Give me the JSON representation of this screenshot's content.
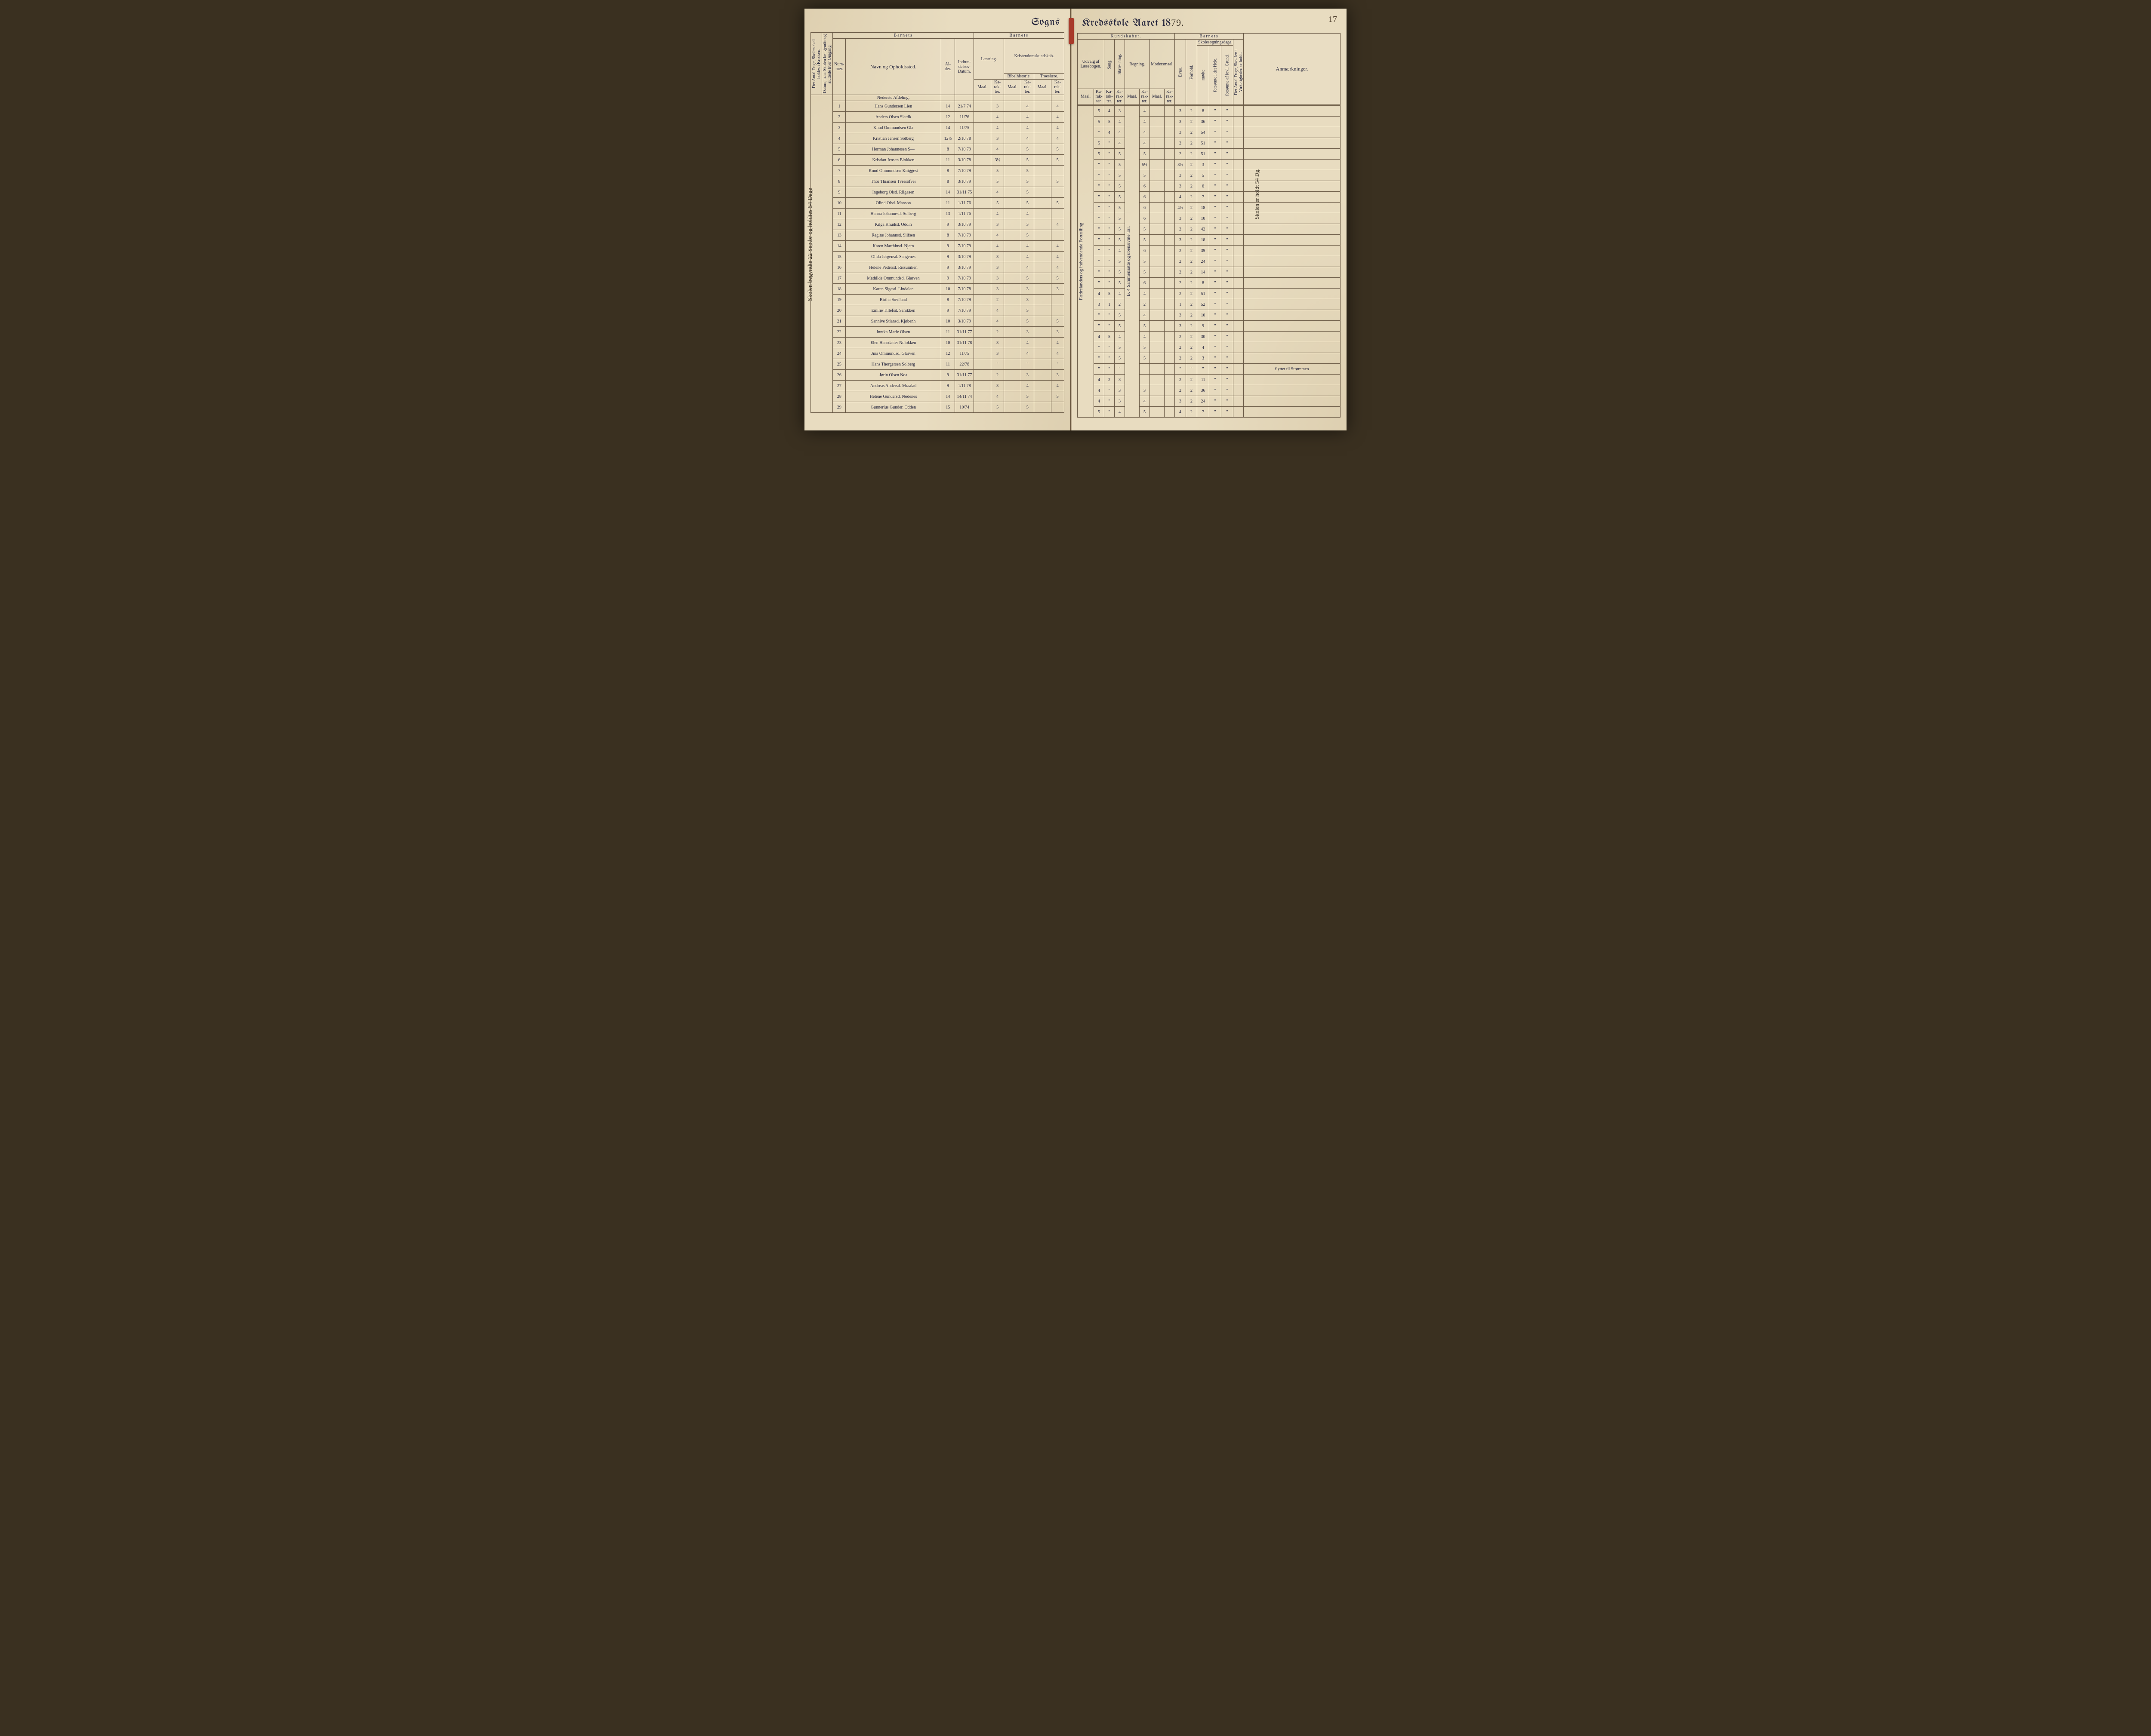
{
  "page_number": "17",
  "title_left": "Sogns",
  "title_right_prefix": "Kredsskole Aaret 18",
  "title_year_suffix": "79.",
  "margin_note_left": "Skolen begyndte 22 Septbr og holdtes 54 Dage",
  "margin_note_right": "Skolen er holdt 54 Dg.",
  "vertical_col_note_left": "Katekismen, 3 Forklaringen til 2den Artikkel",
  "vertical_col_note_right": "Fædrelandets og indvendende Fortælling",
  "vertical_col_note_regning": "B. 4 Sammensatte og ubenævnte Tal.",
  "headers": {
    "barnets": "Barnets",
    "kundskaber": "Kundskaber.",
    "nummer": "Num-\nmer.",
    "navn": "Navn og Opholdssted.",
    "alder": "Al-\nder.",
    "indtr": "Indtræ-\ndelses-\nDatum.",
    "laesning": "Læsning.",
    "kristendom": "Kristendomskundskab.",
    "bibel": "Bibelhistorie.",
    "troes": "Troeslære.",
    "udvalg": "Udvalg af\nLæsebogen.",
    "sang": "Sang.",
    "skriv": "Skriv-\nning.",
    "regning": "Regning.",
    "modersmaal": "Modersmaal.",
    "maal": "Maal.",
    "kar": "Ka-\nrak-\nter.",
    "evne": "Evne.",
    "forhold": "Forhold.",
    "skolesogn": "Skolesøgningsdage.",
    "modte": "mødte",
    "fors_hele": "forsømte i\ndet Hele.",
    "fors_lov": "forsømte af\nlovl. Grund.",
    "anm": "Anmærkninger.",
    "rot_left1": "Det Antal Dage, Skolen\nskal holdes i Kredsen.",
    "rot_left2": "Datum, naar Skolen be-\ngyndte og sluttede hver\nOmgang.",
    "rot_right": "Det Antal Dage, Sko-\nlen i Virkeligheden\ner holdt."
  },
  "subheading": "Nederste Afdeling.",
  "rows": [
    {
      "n": "1",
      "name": "Hans Gundersen Lien",
      "age": "14",
      "date": "21/7 74",
      "l": "3",
      "b": "4",
      "t": "4",
      "u": "5",
      "sa": "4",
      "sk": "3",
      "r": "4",
      "e": "3",
      "f": "2",
      "m": "8",
      "fh": "\"",
      "fl": "\"",
      "rem": ""
    },
    {
      "n": "2",
      "name": "Anders Olsen Slattik",
      "age": "12",
      "date": "11/76",
      "l": "4",
      "b": "4",
      "t": "4",
      "u": "5",
      "sa": "5",
      "sk": "4",
      "r": "4",
      "e": "3",
      "f": "2",
      "m": "36",
      "fh": "\"",
      "fl": "\"",
      "rem": ""
    },
    {
      "n": "3",
      "name": "Knud Ommundsen Gla",
      "age": "14",
      "date": "11/75",
      "l": "4",
      "b": "4",
      "t": "4",
      "u": "\"",
      "sa": "4",
      "sk": "4",
      "r": "4",
      "e": "3",
      "f": "2",
      "m": "54",
      "fh": "\"",
      "fl": "\"",
      "rem": ""
    },
    {
      "n": "4",
      "name": "Kristian Jensen Solberg",
      "age": "12½",
      "date": "2/10 78",
      "l": "3",
      "b": "4",
      "t": "4",
      "u": "5",
      "sa": "\"",
      "sk": "4",
      "r": "4",
      "e": "2",
      "f": "2",
      "m": "51",
      "fh": "\"",
      "fl": "\"",
      "rem": ""
    },
    {
      "n": "5",
      "name": "Herman Johannesen S—",
      "age": "8",
      "date": "7/10 79",
      "l": "4",
      "b": "5",
      "t": "5",
      "u": "5",
      "sa": "\"",
      "sk": "5",
      "r": "5",
      "e": "2",
      "f": "2",
      "m": "51",
      "fh": "\"",
      "fl": "\"",
      "rem": ""
    },
    {
      "n": "6",
      "name": "Kristian Jensen Blokken",
      "age": "11",
      "date": "3/10 78",
      "l": "3½",
      "b": "5",
      "t": "5",
      "u": "\"",
      "sa": "\"",
      "sk": "5",
      "r": "5½",
      "e": "3½",
      "f": "2",
      "m": "3",
      "fh": "\"",
      "fl": "\"",
      "rem": ""
    },
    {
      "n": "7",
      "name": "Knud Ommundsen Kniggest",
      "age": "8",
      "date": "7/10 79",
      "l": "5",
      "b": "5",
      "t": "",
      "u": "\"",
      "sa": "\"",
      "sk": "5",
      "r": "5",
      "e": "3",
      "f": "2",
      "m": "5",
      "fh": "\"",
      "fl": "\"",
      "rem": ""
    },
    {
      "n": "8",
      "name": "Thor Thiansen Tversofvei",
      "age": "8",
      "date": "3/10 79",
      "l": "5",
      "b": "5",
      "t": "5",
      "u": "\"",
      "sa": "\"",
      "sk": "5",
      "r": "6",
      "e": "3",
      "f": "2",
      "m": "6",
      "fh": "\"",
      "fl": "\"",
      "rem": ""
    },
    {
      "n": "9",
      "name": "Ingeborg Olsd. Rilgaaen",
      "age": "14",
      "date": "31/11 75",
      "l": "4",
      "b": "5",
      "t": "",
      "u": "\"",
      "sa": "\"",
      "sk": "5",
      "r": "6",
      "e": "4",
      "f": "2",
      "m": "7",
      "fh": "\"",
      "fl": "\"",
      "rem": ""
    },
    {
      "n": "10",
      "name": "Olind Olsd. Manson",
      "age": "11",
      "date": "1/11 76",
      "l": "5",
      "b": "5",
      "t": "5",
      "u": "\"",
      "sa": "\"",
      "sk": "5",
      "r": "6",
      "e": "4½",
      "f": "2",
      "m": "18",
      "fh": "\"",
      "fl": "\"",
      "rem": ""
    },
    {
      "n": "11",
      "name": "Hanna Johannesd. Solberg",
      "age": "13",
      "date": "1/11 76",
      "l": "4",
      "b": "4",
      "t": "",
      "u": "\"",
      "sa": "\"",
      "sk": "5",
      "r": "6",
      "e": "3",
      "f": "2",
      "m": "10",
      "fh": "\"",
      "fl": "\"",
      "rem": ""
    },
    {
      "n": "12",
      "name": "Kilga Knudsd. Oddin",
      "age": "9",
      "date": "3/10 79",
      "l": "3",
      "b": "3",
      "t": "4",
      "u": "\"",
      "sa": "\"",
      "sk": "5",
      "r": "5",
      "e": "2",
      "f": "2",
      "m": "42",
      "fh": "\"",
      "fl": "\"",
      "rem": ""
    },
    {
      "n": "13",
      "name": "Regine Johannsd. Slifsen",
      "age": "8",
      "date": "7/10 79",
      "l": "4",
      "b": "5",
      "t": "",
      "u": "\"",
      "sa": "\"",
      "sk": "5",
      "r": "5",
      "e": "3",
      "f": "2",
      "m": "18",
      "fh": "\"",
      "fl": "\"",
      "rem": ""
    },
    {
      "n": "14",
      "name": "Karen Marthinsd. Njern",
      "age": "9",
      "date": "7/10 79",
      "l": "4",
      "b": "4",
      "t": "4",
      "u": "\"",
      "sa": "\"",
      "sk": "4",
      "r": "6",
      "e": "2",
      "f": "2",
      "m": "39",
      "fh": "\"",
      "fl": "\"",
      "rem": ""
    },
    {
      "n": "15",
      "name": "Olida Jørgensd. Sangenes",
      "age": "9",
      "date": "3/10 79",
      "l": "3",
      "b": "4",
      "t": "4",
      "u": "\"",
      "sa": "\"",
      "sk": "5",
      "r": "5",
      "e": "2",
      "f": "2",
      "m": "24",
      "fh": "\"",
      "fl": "\"",
      "rem": ""
    },
    {
      "n": "16",
      "name": "Helene Pedersd. Rissumlien",
      "age": "9",
      "date": "3/10 79",
      "l": "3",
      "b": "4",
      "t": "4",
      "u": "\"",
      "sa": "\"",
      "sk": "5",
      "r": "5",
      "e": "2",
      "f": "2",
      "m": "14",
      "fh": "\"",
      "fl": "\"",
      "rem": ""
    },
    {
      "n": "17",
      "name": "Mathilde Ommundsd. Glarven",
      "age": "9",
      "date": "7/10 79",
      "l": "3",
      "b": "5",
      "t": "5",
      "u": "\"",
      "sa": "\"",
      "sk": "5",
      "r": "6",
      "e": "2",
      "f": "2",
      "m": "8",
      "fh": "\"",
      "fl": "\"",
      "rem": ""
    },
    {
      "n": "18",
      "name": "Karen Sigesd. Lindalen",
      "age": "10",
      "date": "7/10 78",
      "l": "3",
      "b": "3",
      "t": "3",
      "u": "4",
      "sa": "5",
      "sk": "4",
      "r": "4",
      "e": "2",
      "f": "2",
      "m": "51",
      "fh": "\"",
      "fl": "\"",
      "rem": ""
    },
    {
      "n": "19",
      "name": "Birtha Soviland",
      "age": "8",
      "date": "7/10 79",
      "l": "2",
      "b": "3",
      "t": "",
      "u": "3",
      "sa": "1",
      "sk": "2",
      "r": "2",
      "e": "1",
      "f": "2",
      "m": "52",
      "fh": "\"",
      "fl": "\"",
      "rem": ""
    },
    {
      "n": "20",
      "name": "Emilie Tillefsd. Sanikken",
      "age": "9",
      "date": "7/10 79",
      "l": "4",
      "b": "5",
      "t": "",
      "u": "\"",
      "sa": "\"",
      "sk": "5",
      "r": "4",
      "e": "3",
      "f": "2",
      "m": "10",
      "fh": "\"",
      "fl": "\"",
      "rem": ""
    },
    {
      "n": "21",
      "name": "Sannive Stiansd. Kjøbenh",
      "age": "10",
      "date": "3/10 79",
      "l": "4",
      "b": "5",
      "t": "5",
      "u": "\"",
      "sa": "\"",
      "sk": "5",
      "r": "5",
      "e": "3",
      "f": "2",
      "m": "9",
      "fh": "\"",
      "fl": "\"",
      "rem": ""
    },
    {
      "n": "22",
      "name": "Inntka Marie Olsen",
      "age": "11",
      "date": "31/11 77",
      "l": "2",
      "b": "3",
      "t": "3",
      "u": "4",
      "sa": "5",
      "sk": "4",
      "r": "4",
      "e": "2",
      "f": "2",
      "m": "30",
      "fh": "\"",
      "fl": "\"",
      "rem": ""
    },
    {
      "n": "23",
      "name": "Elen Hansdatter Nolokken",
      "age": "10",
      "date": "31/11 78",
      "l": "3",
      "b": "4",
      "t": "4",
      "u": "\"",
      "sa": "\"",
      "sk": "5",
      "r": "5",
      "e": "2",
      "f": "2",
      "m": "4",
      "fh": "\"",
      "fl": "\"",
      "rem": ""
    },
    {
      "n": "24",
      "name": "Jina Ommundsd. Glarven",
      "age": "12",
      "date": "11/75",
      "l": "3",
      "b": "4",
      "t": "4",
      "u": "\"",
      "sa": "\"",
      "sk": "5",
      "r": "5",
      "e": "2",
      "f": "2",
      "m": "3",
      "fh": "\"",
      "fl": "\"",
      "rem": ""
    },
    {
      "n": "25",
      "name": "Hans Thorgersen Solberg",
      "age": "11",
      "date": "22/78",
      "l": "\"",
      "b": "\"",
      "t": "\"",
      "u": "\"",
      "sa": "\"",
      "sk": "\"",
      "r": "",
      "e": "\"",
      "f": "\"",
      "m": "\"",
      "fh": "\"",
      "fl": "\"",
      "rem": "flyttet til Strømmen"
    },
    {
      "n": "26",
      "name": "Jørin Olsen Noa",
      "age": "9",
      "date": "31/11 77",
      "l": "2",
      "b": "3",
      "t": "3",
      "u": "4",
      "sa": "2",
      "sk": "3",
      "r": "",
      "e": "2",
      "f": "2",
      "m": "11",
      "fh": "\"",
      "fl": "\"",
      "rem": ""
    },
    {
      "n": "27",
      "name": "Andreas Andersd. Mraalad",
      "age": "9",
      "date": "1/11 78",
      "l": "3",
      "b": "4",
      "t": "4",
      "u": "4",
      "sa": "\"",
      "sk": "3",
      "r": "3",
      "e": "2",
      "f": "2",
      "m": "36",
      "fh": "\"",
      "fl": "\"",
      "rem": ""
    },
    {
      "n": "28",
      "name": "Helene Gundersd. Nodenes",
      "age": "14",
      "date": "14/11 74",
      "l": "4",
      "b": "5",
      "t": "5",
      "u": "4",
      "sa": "\"",
      "sk": "3",
      "r": "4",
      "e": "3",
      "f": "2",
      "m": "24",
      "fh": "\"",
      "fl": "\"",
      "rem": ""
    },
    {
      "n": "29",
      "name": "Gunnerius Gunder. Odden",
      "age": "15",
      "date": "10/74",
      "l": "5",
      "b": "5",
      "t": "",
      "u": "5",
      "sa": "\"",
      "sk": "4",
      "r": "5",
      "e": "4",
      "f": "2",
      "m": "7",
      "fh": "\"",
      "fl": "\"",
      "rem": ""
    }
  ],
  "style": {
    "paper": "#e8dcc0",
    "ink_print": "#2a2a40",
    "ink_hand": "#3a3226",
    "rule": "#6a5a46",
    "ribbon": "#a83a2a"
  }
}
